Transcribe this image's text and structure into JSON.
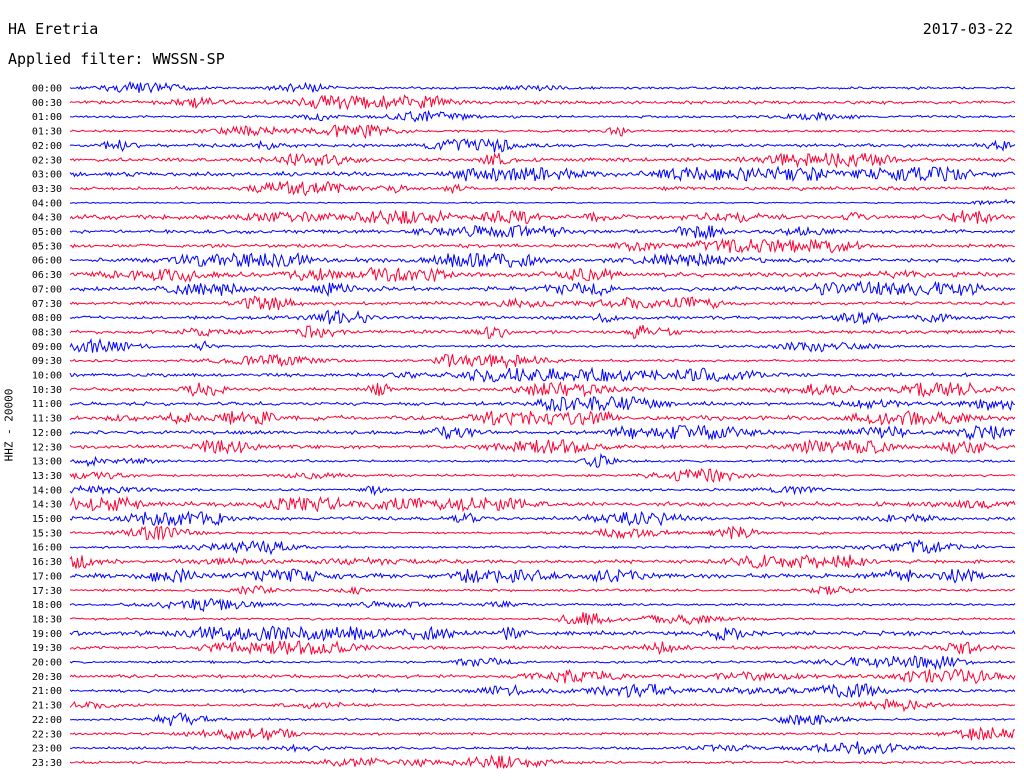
{
  "header": {
    "station": "HA Eretria",
    "date": "2017-03-22",
    "filter_label": "Applied filter: WWSSN-SP"
  },
  "chart_data": {
    "type": "line",
    "title": "HA Eretria",
    "subtitle": "Applied filter: WWSSN-SP",
    "date": "2017-03-22",
    "ylabel": "HHZ - 20000",
    "xlabel": "",
    "colors": [
      "#0000ff",
      "#ff0033"
    ],
    "grid": false,
    "categories": [
      "00:00",
      "00:30",
      "01:00",
      "01:30",
      "02:00",
      "02:30",
      "03:00",
      "03:30",
      "04:00",
      "04:30",
      "05:00",
      "05:30",
      "06:00",
      "06:30",
      "07:00",
      "07:30",
      "08:00",
      "08:30",
      "09:00",
      "09:30",
      "10:00",
      "10:30",
      "11:00",
      "11:30",
      "12:00",
      "12:30",
      "13:00",
      "13:30",
      "14:00",
      "14:30",
      "15:00",
      "15:30",
      "16:00",
      "16:30",
      "17:00",
      "17:30",
      "18:00",
      "18:30",
      "19:00",
      "19:30",
      "20:00",
      "20:30",
      "21:00",
      "21:30",
      "22:00",
      "22:30",
      "23:00",
      "23:30"
    ],
    "activity": [
      1,
      2,
      1,
      1,
      2,
      2,
      3,
      2,
      0,
      3,
      2,
      2,
      3,
      3,
      3,
      2,
      2,
      2,
      1,
      1,
      2,
      2,
      2,
      3,
      2,
      2,
      1,
      1,
      1,
      3,
      2,
      1,
      1,
      2,
      3,
      1,
      1,
      1,
      3,
      2,
      1,
      2,
      2,
      1,
      1,
      1,
      1,
      1
    ]
  }
}
